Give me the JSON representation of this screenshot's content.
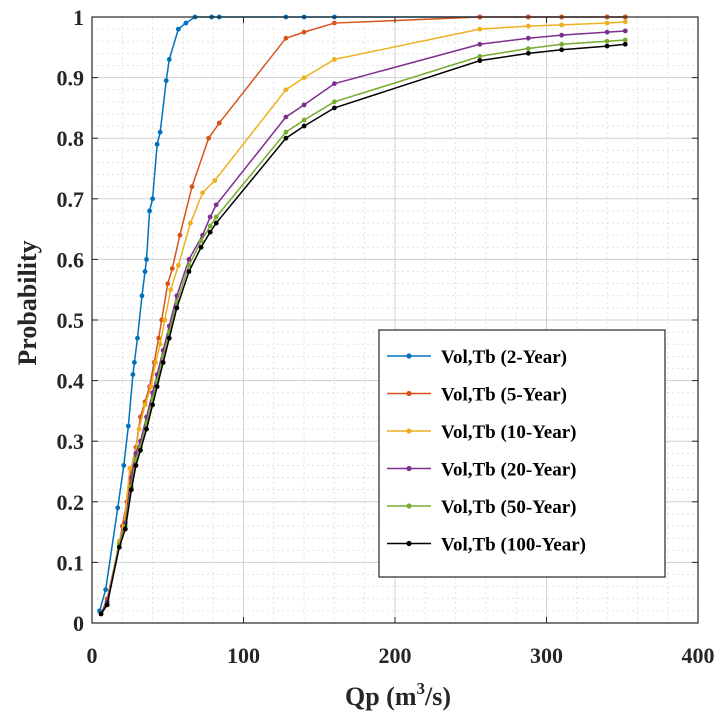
{
  "chart_data": {
    "type": "line",
    "xlabel": "Qp (m³/s)",
    "xlabel_main": "Qp (m",
    "xlabel_sup": "3",
    "xlabel_end": "/s)",
    "ylabel": "Probability",
    "xlim": [
      0,
      400
    ],
    "ylim": [
      0,
      1
    ],
    "xticks": [
      "0",
      "100",
      "200",
      "300",
      "400"
    ],
    "yticks": [
      "0",
      "0.1",
      "0.2",
      "0.3",
      "0.4",
      "0.5",
      "0.6",
      "0.7",
      "0.8",
      "0.9",
      "1"
    ],
    "grid": true,
    "minor_grid": true,
    "legend_position": "bottom-right",
    "series": [
      {
        "name": "Vol,Tb (2-Year)",
        "color": "#0072BD",
        "points": [
          [
            5,
            0.02
          ],
          [
            9,
            0.055
          ],
          [
            17,
            0.19
          ],
          [
            21,
            0.26
          ],
          [
            24,
            0.325
          ],
          [
            27,
            0.41
          ],
          [
            28,
            0.43
          ],
          [
            30,
            0.47
          ],
          [
            33,
            0.54
          ],
          [
            35,
            0.58
          ],
          [
            36,
            0.6
          ],
          [
            38,
            0.68
          ],
          [
            40,
            0.7
          ],
          [
            43,
            0.79
          ],
          [
            45,
            0.81
          ],
          [
            49,
            0.895
          ],
          [
            51,
            0.93
          ],
          [
            57,
            0.98
          ],
          [
            62,
            0.99
          ],
          [
            68,
            1.0
          ],
          [
            79,
            1.0
          ],
          [
            84,
            1.0
          ],
          [
            128,
            1.0
          ],
          [
            140,
            1.0
          ],
          [
            160,
            1.0
          ],
          [
            256,
            1.0
          ],
          [
            288,
            1.0
          ],
          [
            310,
            1.0
          ],
          [
            340,
            1.0
          ],
          [
            352,
            1.0
          ]
        ]
      },
      {
        "name": "Vol,Tb (5-Year)",
        "color": "#D95319",
        "points": [
          [
            6,
            0.015
          ],
          [
            10,
            0.04
          ],
          [
            18,
            0.13
          ],
          [
            20,
            0.16
          ],
          [
            23,
            0.2
          ],
          [
            26,
            0.255
          ],
          [
            29,
            0.29
          ],
          [
            32,
            0.34
          ],
          [
            35,
            0.365
          ],
          [
            38,
            0.39
          ],
          [
            41,
            0.43
          ],
          [
            44,
            0.47
          ],
          [
            46,
            0.5
          ],
          [
            50,
            0.56
          ],
          [
            53,
            0.585
          ],
          [
            58,
            0.64
          ],
          [
            66,
            0.72
          ],
          [
            77,
            0.8
          ],
          [
            84,
            0.825
          ],
          [
            128,
            0.965
          ],
          [
            140,
            0.975
          ],
          [
            160,
            0.99
          ],
          [
            256,
            1.0
          ],
          [
            288,
            1.0
          ],
          [
            310,
            1.0
          ],
          [
            340,
            1.0
          ],
          [
            352,
            1.0
          ]
        ]
      },
      {
        "name": "Vol,Tb (10-Year)",
        "color": "#EDB120",
        "points": [
          [
            6,
            0.015
          ],
          [
            10,
            0.035
          ],
          [
            18,
            0.135
          ],
          [
            21,
            0.16
          ],
          [
            25,
            0.255
          ],
          [
            28,
            0.27
          ],
          [
            31,
            0.32
          ],
          [
            35,
            0.36
          ],
          [
            39,
            0.39
          ],
          [
            42,
            0.43
          ],
          [
            45,
            0.46
          ],
          [
            48,
            0.5
          ],
          [
            52,
            0.55
          ],
          [
            57,
            0.59
          ],
          [
            65,
            0.66
          ],
          [
            73,
            0.71
          ],
          [
            81,
            0.73
          ],
          [
            128,
            0.88
          ],
          [
            140,
            0.9
          ],
          [
            160,
            0.93
          ],
          [
            256,
            0.98
          ],
          [
            288,
            0.985
          ],
          [
            310,
            0.987
          ],
          [
            340,
            0.99
          ],
          [
            352,
            0.992
          ]
        ]
      },
      {
        "name": "Vol,Tb (20-Year)",
        "color": "#7E2F8E",
        "points": [
          [
            6,
            0.015
          ],
          [
            10,
            0.035
          ],
          [
            18,
            0.13
          ],
          [
            22,
            0.165
          ],
          [
            26,
            0.24
          ],
          [
            29,
            0.28
          ],
          [
            32,
            0.3
          ],
          [
            36,
            0.34
          ],
          [
            40,
            0.38
          ],
          [
            43,
            0.41
          ],
          [
            47,
            0.45
          ],
          [
            51,
            0.49
          ],
          [
            56,
            0.54
          ],
          [
            64,
            0.6
          ],
          [
            73,
            0.64
          ],
          [
            78,
            0.67
          ],
          [
            82,
            0.69
          ],
          [
            128,
            0.835
          ],
          [
            140,
            0.855
          ],
          [
            160,
            0.89
          ],
          [
            256,
            0.955
          ],
          [
            288,
            0.965
          ],
          [
            310,
            0.97
          ],
          [
            340,
            0.975
          ],
          [
            352,
            0.977
          ]
        ]
      },
      {
        "name": "Vol,Tb (50-Year)",
        "color": "#77AC30",
        "points": [
          [
            6,
            0.015
          ],
          [
            10,
            0.03
          ],
          [
            18,
            0.13
          ],
          [
            22,
            0.16
          ],
          [
            26,
            0.225
          ],
          [
            29,
            0.27
          ],
          [
            32,
            0.29
          ],
          [
            36,
            0.33
          ],
          [
            40,
            0.37
          ],
          [
            43,
            0.4
          ],
          [
            47,
            0.44
          ],
          [
            51,
            0.48
          ],
          [
            56,
            0.53
          ],
          [
            64,
            0.59
          ],
          [
            72,
            0.63
          ],
          [
            78,
            0.655
          ],
          [
            82,
            0.67
          ],
          [
            128,
            0.81
          ],
          [
            140,
            0.83
          ],
          [
            160,
            0.86
          ],
          [
            256,
            0.935
          ],
          [
            288,
            0.948
          ],
          [
            310,
            0.955
          ],
          [
            340,
            0.96
          ],
          [
            352,
            0.962
          ]
        ]
      },
      {
        "name": "Vol,Tb (100-Year)",
        "color": "#000000",
        "points": [
          [
            6,
            0.015
          ],
          [
            10,
            0.03
          ],
          [
            18,
            0.125
          ],
          [
            22,
            0.155
          ],
          [
            26,
            0.22
          ],
          [
            29,
            0.26
          ],
          [
            32,
            0.285
          ],
          [
            36,
            0.32
          ],
          [
            40,
            0.36
          ],
          [
            43,
            0.39
          ],
          [
            47,
            0.43
          ],
          [
            51,
            0.47
          ],
          [
            56,
            0.52
          ],
          [
            64,
            0.58
          ],
          [
            72,
            0.62
          ],
          [
            78,
            0.645
          ],
          [
            82,
            0.66
          ],
          [
            128,
            0.8
          ],
          [
            140,
            0.82
          ],
          [
            160,
            0.85
          ],
          [
            256,
            0.928
          ],
          [
            288,
            0.94
          ],
          [
            310,
            0.946
          ],
          [
            340,
            0.952
          ],
          [
            352,
            0.955
          ]
        ]
      }
    ]
  }
}
